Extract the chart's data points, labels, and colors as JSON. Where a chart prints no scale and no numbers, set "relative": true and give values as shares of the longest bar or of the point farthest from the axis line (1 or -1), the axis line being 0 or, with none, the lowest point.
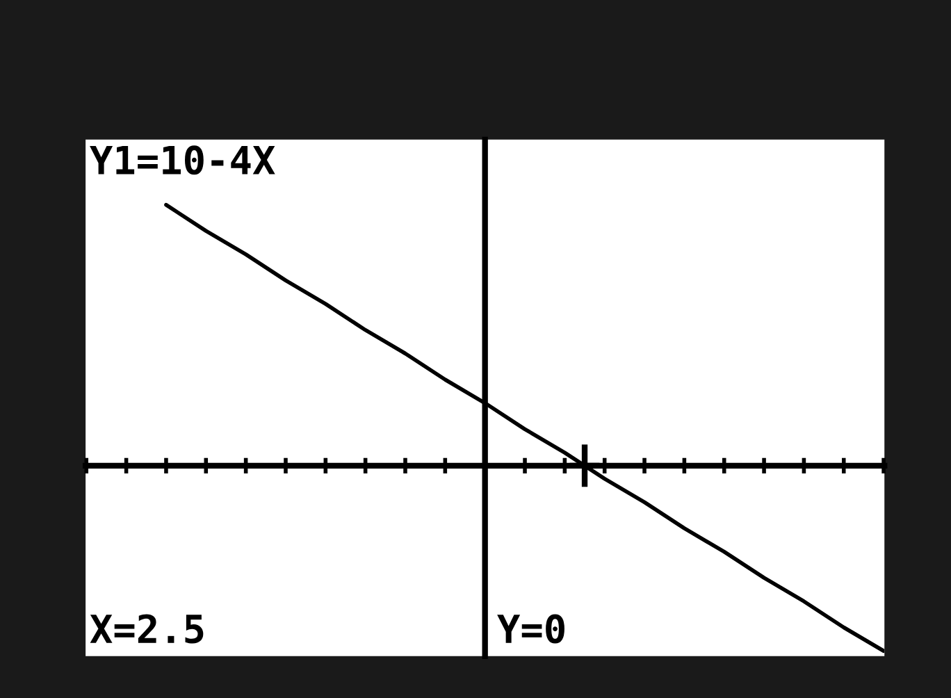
{
  "chart_data": {
    "type": "line",
    "relative": true,
    "categories": [
      null,
      null,
      null,
      null,
      null,
      null,
      null,
      null,
      null,
      null,
      null,
      null,
      null,
      null,
      null,
      null,
      null,
      null,
      null,
      null,
      null
    ],
    "grid": false,
    "series": [
      {
        "color": "#000000",
        "values": [
          null,
          null,
          1,
          0.9,
          0.81,
          0.71,
          0.62,
          0.52,
          0.43,
          0.33,
          0.24,
          0.14,
          0.05,
          -0.05,
          -0.14,
          -0.24,
          -0.33,
          -0.43,
          -0.52,
          -0.62,
          -0.71
        ]
      }
    ],
    "annotations": [
      "Y1=10-4X",
      "X=2.5",
      "Y=0"
    ]
  }
}
